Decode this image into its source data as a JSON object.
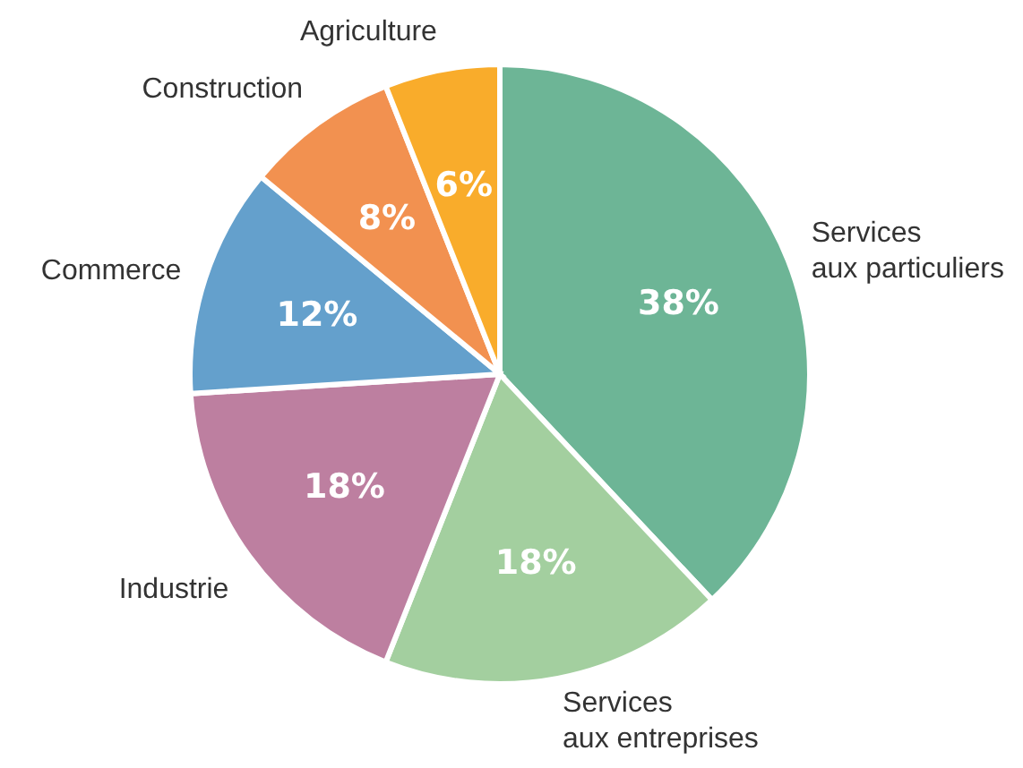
{
  "chart_data": {
    "type": "pie",
    "categories": [
      "Services aux particuliers",
      "Services aux entreprises",
      "Industrie",
      "Commerce",
      "Construction",
      "Agriculture"
    ],
    "values": [
      38,
      18,
      18,
      12,
      8,
      6
    ],
    "colors": [
      "#6db596",
      "#a3cf9f",
      "#bd7fa0",
      "#64a0cc",
      "#f29150",
      "#f9ac2b"
    ],
    "value_labels": [
      "38%",
      "18%",
      "18%",
      "12%",
      "8%",
      "6%"
    ]
  }
}
